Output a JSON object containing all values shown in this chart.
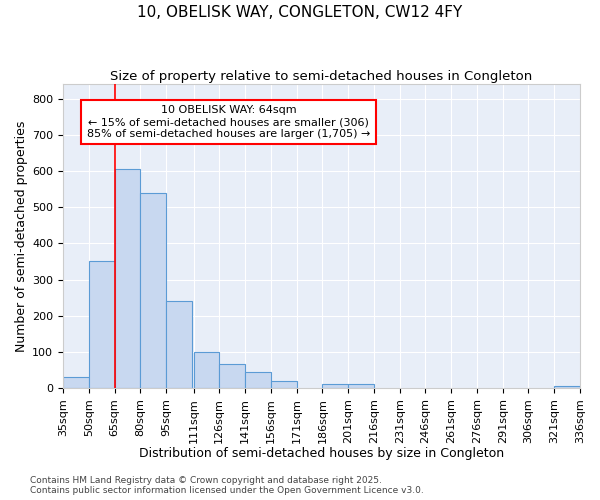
{
  "title1": "10, OBELISK WAY, CONGLETON, CW12 4FY",
  "title2": "Size of property relative to semi-detached houses in Congleton",
  "xlabel": "Distribution of semi-detached houses by size in Congleton",
  "ylabel": "Number of semi-detached properties",
  "bar_color": "#c8d8f0",
  "bar_edge_color": "#5b9bd5",
  "categories": [
    "35sqm",
    "50sqm",
    "65sqm",
    "80sqm",
    "95sqm",
    "111sqm",
    "126sqm",
    "141sqm",
    "156sqm",
    "171sqm",
    "186sqm",
    "201sqm",
    "216sqm",
    "231sqm",
    "246sqm",
    "261sqm",
    "276sqm",
    "291sqm",
    "306sqm",
    "321sqm",
    "336sqm"
  ],
  "bin_left_edges": [
    35,
    50,
    65,
    80,
    95,
    111,
    126,
    141,
    156,
    171,
    186,
    201,
    216,
    231,
    246,
    261,
    276,
    291,
    306,
    321
  ],
  "bin_width": 15,
  "bar_heights": [
    30,
    350,
    605,
    540,
    240,
    100,
    68,
    45,
    20,
    0,
    10,
    10,
    0,
    0,
    0,
    0,
    0,
    0,
    0,
    5
  ],
  "red_line_x": 65,
  "ylim": [
    0,
    840
  ],
  "yticks": [
    0,
    100,
    200,
    300,
    400,
    500,
    600,
    700,
    800
  ],
  "annotation_text": "10 OBELISK WAY: 64sqm\n← 15% of semi-detached houses are smaller (306)\n85% of semi-detached houses are larger (1,705) →",
  "footer1": "Contains HM Land Registry data © Crown copyright and database right 2025.",
  "footer2": "Contains public sector information licensed under the Open Government Licence v3.0.",
  "fig_bg_color": "#ffffff",
  "plot_bg_color": "#e8eef8",
  "grid_color": "#ffffff",
  "title1_fontsize": 11,
  "title2_fontsize": 9.5,
  "axis_label_fontsize": 9,
  "tick_fontsize": 8,
  "footer_fontsize": 6.5,
  "annotation_fontsize": 8
}
